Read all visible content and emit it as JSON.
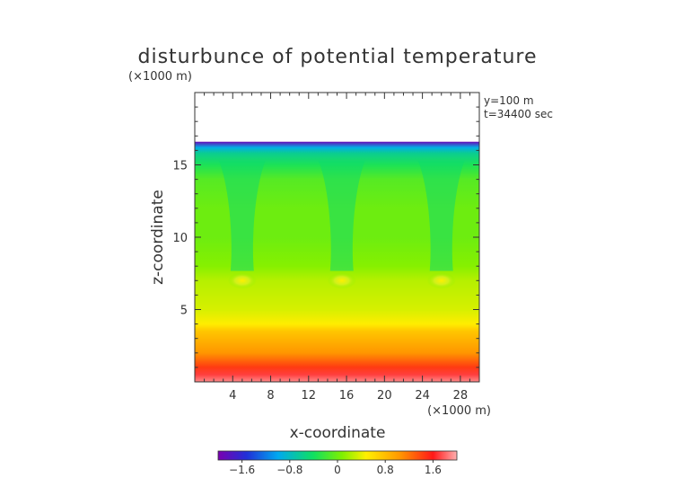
{
  "chart_data": {
    "type": "heatmap",
    "title": "disturbunce of potential temperature",
    "xlabel": "x-coordinate",
    "ylabel": "z-coordinate",
    "x_unit": "(×1000 m)",
    "y_unit": "(×1000 m)",
    "xlim": [
      0,
      30
    ],
    "ylim": [
      0,
      20
    ],
    "x_ticks": [
      4,
      8,
      12,
      16,
      20,
      24,
      28
    ],
    "x_tick_labels": [
      "4",
      "8",
      "12",
      "16",
      "20",
      "24",
      "28"
    ],
    "y_ticks": [
      5,
      10,
      15
    ],
    "y_tick_labels": [
      "5",
      "10",
      "15"
    ],
    "annotations": [
      "y=100 m",
      "t=34400 sec"
    ],
    "data_top_z": 16.6,
    "colorbar": {
      "min": -2.0,
      "max": 2.0,
      "ticks": [
        -1.6,
        -0.8,
        0,
        0.8,
        1.6
      ],
      "tick_labels": [
        "−1.6",
        "−0.8",
        "0",
        "0.8",
        "1.6"
      ]
    },
    "plumes_x": [
      5,
      15.5,
      26
    ],
    "z_profile": [
      [
        0.0,
        1.9
      ],
      [
        0.5,
        1.7
      ],
      [
        1.0,
        1.45
      ],
      [
        1.5,
        1.25
      ],
      [
        2.0,
        1.05
      ],
      [
        2.5,
        0.95
      ],
      [
        3.0,
        0.85
      ],
      [
        3.5,
        0.75
      ],
      [
        4.0,
        0.5
      ],
      [
        5.0,
        0.35
      ],
      [
        6.0,
        0.3
      ],
      [
        7.0,
        0.25
      ],
      [
        8.0,
        0.1
      ],
      [
        10.0,
        0.0
      ],
      [
        12.0,
        0.0
      ],
      [
        14.0,
        -0.1
      ],
      [
        15.0,
        -0.35
      ],
      [
        15.8,
        -0.6
      ],
      [
        16.2,
        -0.95
      ],
      [
        16.6,
        -1.9
      ]
    ]
  }
}
